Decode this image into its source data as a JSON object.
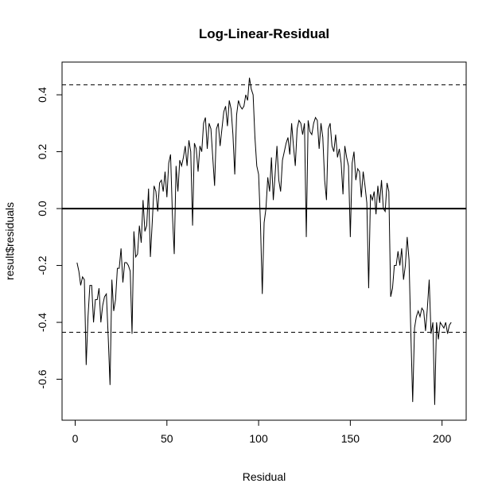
{
  "chart_data": {
    "type": "line",
    "title": "Log-Linear-Residual",
    "xlabel": "Residual",
    "ylabel": "result$residuals",
    "x": [
      1,
      2,
      3,
      4,
      5,
      6,
      7,
      8,
      9,
      10,
      11,
      12,
      13,
      14,
      15,
      16,
      17,
      18,
      19,
      20,
      21,
      22,
      23,
      24,
      25,
      26,
      27,
      28,
      29,
      30,
      31,
      32,
      33,
      34,
      35,
      36,
      37,
      38,
      39,
      40,
      41,
      42,
      43,
      44,
      45,
      46,
      47,
      48,
      49,
      50,
      51,
      52,
      53,
      54,
      55,
      56,
      57,
      58,
      59,
      60,
      61,
      62,
      63,
      64,
      65,
      66,
      67,
      68,
      69,
      70,
      71,
      72,
      73,
      74,
      75,
      76,
      77,
      78,
      79,
      80,
      81,
      82,
      83,
      84,
      85,
      86,
      87,
      88,
      89,
      90,
      91,
      92,
      93,
      94,
      95,
      96,
      97,
      98,
      99,
      100,
      101,
      102,
      103,
      104,
      105,
      106,
      107,
      108,
      109,
      110,
      111,
      112,
      113,
      114,
      115,
      116,
      117,
      118,
      119,
      120,
      121,
      122,
      123,
      124,
      125,
      126,
      127,
      128,
      129,
      130,
      131,
      132,
      133,
      134,
      135,
      136,
      137,
      138,
      139,
      140,
      141,
      142,
      143,
      144,
      145,
      146,
      147,
      148,
      149,
      150,
      151,
      152,
      153,
      154,
      155,
      156,
      157,
      158,
      159,
      160,
      161,
      162,
      163,
      164,
      165,
      166,
      167,
      168,
      169,
      170,
      171,
      172,
      173,
      174,
      175,
      176,
      177,
      178,
      179,
      180,
      181,
      182,
      183,
      184,
      185,
      186,
      187,
      188,
      189,
      190,
      191,
      192,
      193,
      194,
      195,
      196,
      197,
      198,
      199,
      200,
      201,
      202,
      203,
      204,
      205
    ],
    "series": [
      {
        "color": "#000000",
        "values": [
          -0.19,
          -0.22,
          -0.27,
          -0.24,
          -0.25,
          -0.55,
          -0.38,
          -0.27,
          -0.27,
          -0.4,
          -0.32,
          -0.32,
          -0.28,
          -0.4,
          -0.34,
          -0.31,
          -0.3,
          -0.45,
          -0.62,
          -0.25,
          -0.36,
          -0.32,
          -0.21,
          -0.21,
          -0.14,
          -0.26,
          -0.19,
          -0.19,
          -0.2,
          -0.22,
          -0.44,
          -0.08,
          -0.17,
          -0.16,
          -0.06,
          -0.12,
          0.03,
          -0.08,
          -0.06,
          0.07,
          -0.17,
          -0.05,
          0.08,
          0.06,
          -0.01,
          0.09,
          0.1,
          0.06,
          0.13,
          0.04,
          0.16,
          0.19,
          -0.02,
          -0.16,
          0.15,
          0.06,
          0.17,
          0.15,
          0.18,
          0.22,
          0.15,
          0.24,
          0.2,
          -0.06,
          0.23,
          0.21,
          0.13,
          0.22,
          0.2,
          0.3,
          0.32,
          0.21,
          0.3,
          0.28,
          0.18,
          0.08,
          0.28,
          0.3,
          0.22,
          0.28,
          0.34,
          0.36,
          0.29,
          0.38,
          0.35,
          0.26,
          0.12,
          0.33,
          0.38,
          0.36,
          0.35,
          0.36,
          0.4,
          0.38,
          0.46,
          0.42,
          0.4,
          0.25,
          0.15,
          0.12,
          -0.05,
          -0.3,
          -0.05,
          0.0,
          0.11,
          0.06,
          0.18,
          0.03,
          0.12,
          0.22,
          0.1,
          0.06,
          0.17,
          0.2,
          0.23,
          0.25,
          0.19,
          0.3,
          0.22,
          0.15,
          0.28,
          0.31,
          0.3,
          0.26,
          0.3,
          -0.1,
          0.31,
          0.27,
          0.26,
          0.3,
          0.32,
          0.31,
          0.21,
          0.3,
          0.25,
          0.1,
          0.03,
          0.28,
          0.3,
          0.22,
          0.2,
          0.26,
          0.18,
          0.21,
          0.16,
          0.05,
          0.22,
          0.18,
          0.15,
          -0.1,
          0.16,
          0.2,
          0.1,
          0.14,
          0.13,
          0.04,
          0.13,
          0.08,
          0.02,
          -0.28,
          0.05,
          0.03,
          0.06,
          -0.02,
          0.08,
          0.02,
          0.1,
          0.0,
          -0.01,
          0.09,
          0.06,
          -0.31,
          -0.28,
          -0.2,
          -0.2,
          -0.15,
          -0.2,
          -0.14,
          -0.25,
          -0.2,
          -0.1,
          -0.18,
          -0.44,
          -0.68,
          -0.42,
          -0.38,
          -0.36,
          -0.38,
          -0.35,
          -0.36,
          -0.43,
          -0.35,
          -0.25,
          -0.44,
          -0.4,
          -0.69,
          -0.4,
          -0.46,
          -0.4,
          -0.41,
          -0.42,
          -0.4,
          -0.44,
          -0.41,
          -0.4
        ]
      }
    ],
    "xlim": [
      -7.16,
      213.16
    ],
    "ylim": [
      -0.744,
      0.515
    ],
    "xticks": [
      0,
      50,
      100,
      150,
      200
    ],
    "yticks": [
      -0.6,
      -0.4,
      -0.2,
      {
        "value": 0,
        "label": "0.0"
      },
      0.2,
      0.4
    ],
    "hlines": [
      {
        "value": 0,
        "style": "solid"
      },
      {
        "value": 0.435,
        "style": "dashed"
      },
      {
        "value": -0.435,
        "style": "dashed"
      }
    ]
  }
}
